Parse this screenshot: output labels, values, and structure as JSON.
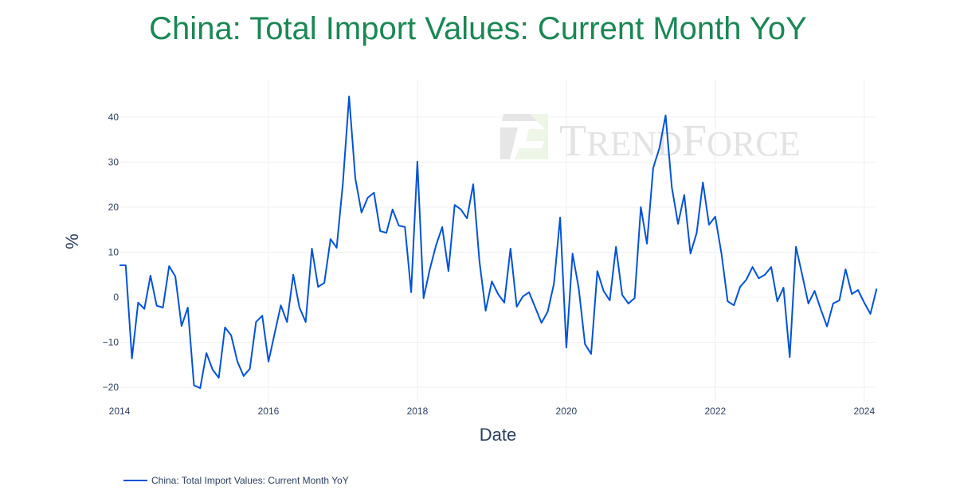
{
  "chart_data": {
    "type": "line",
    "title": "China: Total Import Values: Current Month YoY",
    "xlabel": "Date",
    "ylabel": "%",
    "xlim": [
      "2014-01",
      "2024-03"
    ],
    "ylim": [
      -24,
      48
    ],
    "x_ticks": [
      "2014",
      "2016",
      "2018",
      "2020",
      "2022",
      "2024"
    ],
    "y_ticks": [
      -20,
      -10,
      0,
      10,
      20,
      30,
      40
    ],
    "y_tick_labels": [
      "−20",
      "−10",
      "0",
      "10",
      "20",
      "30",
      "40"
    ],
    "grid": true,
    "legend_placement": "bottom-left",
    "watermark": "TrendForce",
    "series": [
      {
        "name": "China: Total Import Values: Current Month YoY",
        "color": "#0052d9",
        "start": "2014-01",
        "frequency": "monthly",
        "values": [
          7.1,
          7.1,
          -13.6,
          -1.2,
          -2.6,
          4.8,
          -1.9,
          -2.3,
          6.9,
          4.6,
          -6.4,
          -2.3,
          -19.6,
          -20.2,
          -12.4,
          -16.1,
          -17.9,
          -6.7,
          -8.5,
          -14.3,
          -17.5,
          -15.9,
          -5.5,
          -4.1,
          -14.3,
          -8.0,
          -1.8,
          -5.5,
          5.0,
          -2.3,
          -5.5,
          10.8,
          2.3,
          3.2,
          12.9,
          11.0,
          25.3,
          44.6,
          26.4,
          18.8,
          22.1,
          23.2,
          14.7,
          14.3,
          19.5,
          15.9,
          15.6,
          1.1,
          30.1,
          -0.2,
          6.2,
          11.5,
          15.6,
          5.8,
          20.5,
          19.5,
          17.5,
          25.1,
          8.0,
          -3.0,
          3.5,
          0.7,
          -1.2,
          10.8,
          -2.1,
          0.2,
          1.1,
          -2.3,
          -5.7,
          -3.2,
          3.0,
          17.7,
          -11.2,
          9.7,
          1.9,
          -10.4,
          -12.6,
          5.8,
          1.4,
          -0.7,
          11.2,
          0.5,
          -1.4,
          -0.2,
          20.0,
          11.9,
          28.7,
          33.1,
          40.4,
          24.4,
          16.3,
          22.7,
          9.7,
          14.3,
          25.5,
          16.1,
          17.9,
          9.7,
          -0.9,
          -1.8,
          2.3,
          3.9,
          6.7,
          4.2,
          5.0,
          6.7,
          -0.9,
          2.1,
          -13.3,
          11.2,
          5.0,
          -1.4,
          1.4,
          -2.7,
          -6.5,
          -1.4,
          -0.7,
          6.2,
          0.7,
          1.6,
          -1.2,
          -3.7,
          1.9
        ]
      }
    ]
  }
}
